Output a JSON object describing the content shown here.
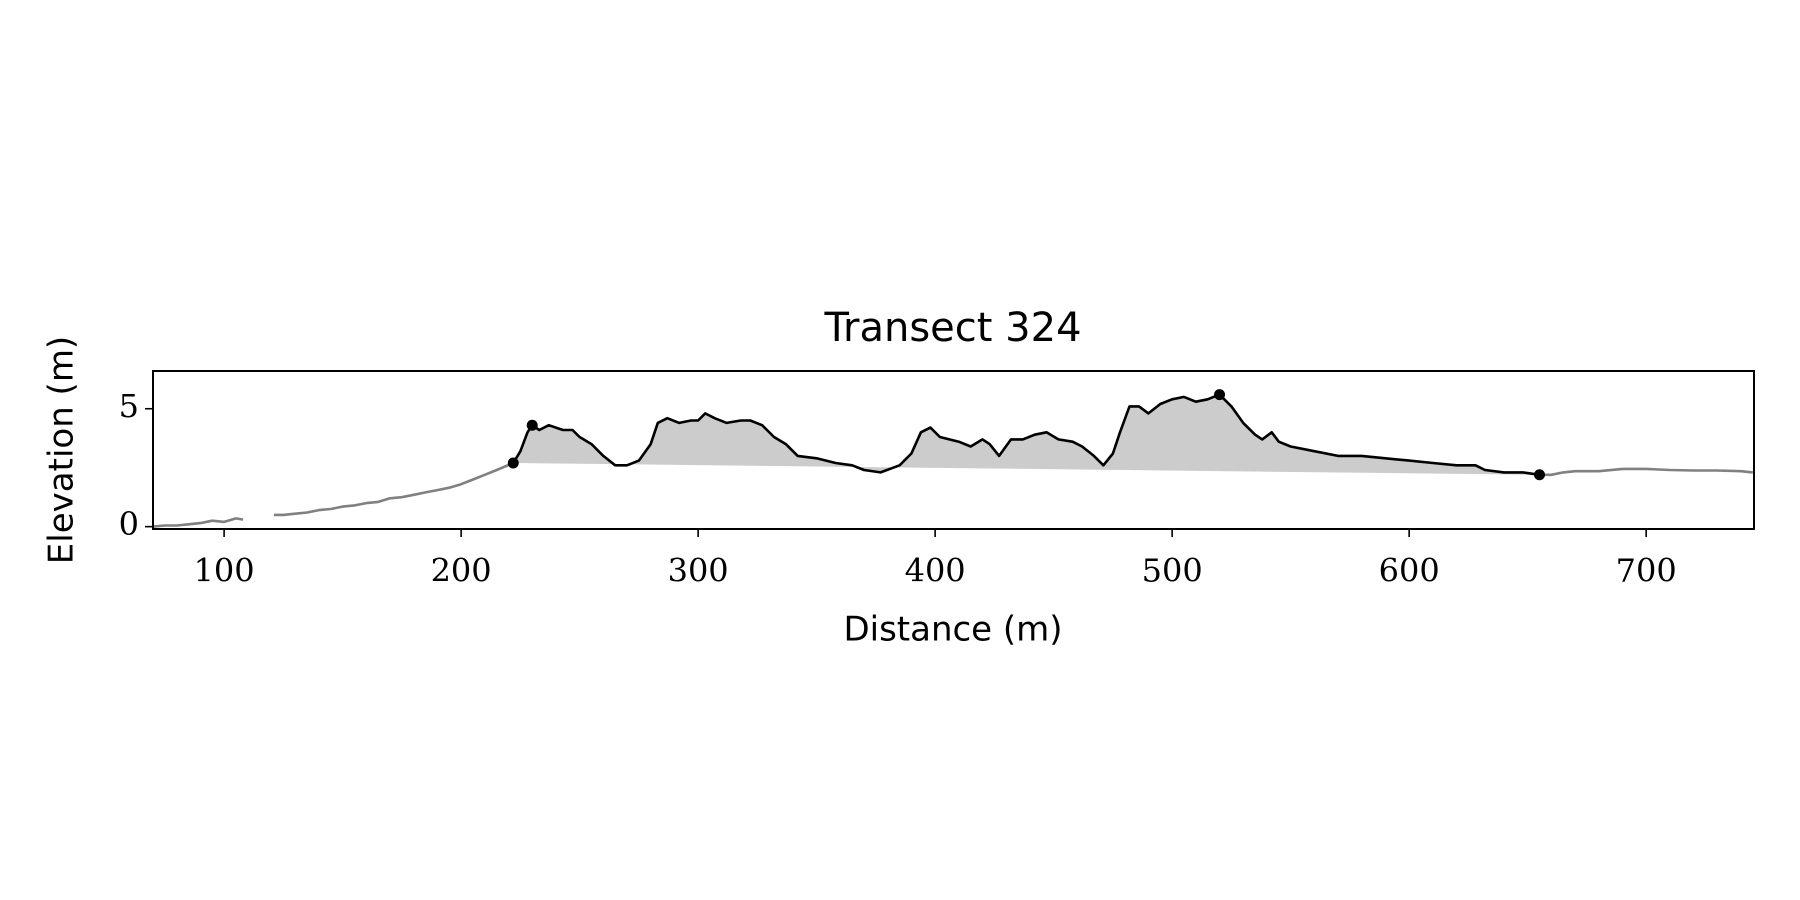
{
  "chart_data": {
    "type": "line",
    "title": "Transect 324",
    "x_label": "Distance (m)",
    "y_label": "Elevation (m)",
    "xlim": [
      70,
      745.5
    ],
    "ylim": [
      -0.1,
      6.6
    ],
    "xticks": [
      100,
      200,
      300,
      400,
      500,
      600,
      700
    ],
    "yticks": [
      0,
      5
    ],
    "grid": false,
    "series": [
      {
        "color": "#808080",
        "x": [
          70,
          75,
          80,
          85,
          90,
          95,
          100,
          105,
          108,
          114,
          121,
          125,
          130,
          135,
          140,
          145,
          150,
          155,
          160,
          165,
          170,
          175,
          180,
          185,
          190,
          195,
          200,
          205,
          210,
          215,
          222,
          440,
          655,
          660,
          665,
          670,
          680,
          690,
          700,
          710,
          720,
          730,
          740,
          745
        ],
        "values": [
          0.0,
          0.05,
          0.05,
          0.1,
          0.15,
          0.25,
          0.2,
          0.35,
          0.3,
          null,
          0.5,
          0.5,
          0.55,
          0.6,
          0.7,
          0.75,
          0.85,
          0.9,
          1.0,
          1.05,
          1.2,
          1.25,
          1.35,
          1.45,
          1.55,
          1.65,
          1.8,
          2.0,
          2.2,
          2.4,
          2.7,
          null,
          2.2,
          2.2,
          2.3,
          2.35,
          2.35,
          2.45,
          2.45,
          2.4,
          2.38,
          2.38,
          2.35,
          2.3
        ]
      },
      {
        "color": "#000000",
        "fill": "#cccccc",
        "x": [
          222,
          225,
          228,
          230,
          233,
          237,
          240,
          243,
          247,
          250,
          255,
          260,
          265,
          270,
          275,
          280,
          283,
          287,
          292,
          297,
          300,
          303,
          307,
          312,
          318,
          322,
          327,
          332,
          337,
          342,
          350,
          358,
          365,
          370,
          377,
          385,
          390,
          394,
          398,
          402,
          410,
          415,
          420,
          423,
          427,
          432,
          437,
          442,
          447,
          452,
          458,
          462,
          467,
          471,
          475,
          478,
          482,
          486,
          490,
          495,
          500,
          505,
          510,
          515,
          520,
          525,
          530,
          535,
          538,
          542,
          545,
          550,
          560,
          570,
          580,
          590,
          600,
          610,
          620,
          628,
          632,
          640,
          648,
          655
        ],
        "values": [
          2.7,
          3.2,
          4.0,
          4.3,
          4.1,
          4.3,
          4.2,
          4.1,
          4.1,
          3.8,
          3.5,
          3.0,
          2.6,
          2.6,
          2.8,
          3.5,
          4.4,
          4.6,
          4.4,
          4.5,
          4.5,
          4.8,
          4.6,
          4.4,
          4.5,
          4.5,
          4.3,
          3.8,
          3.5,
          3.0,
          2.9,
          2.7,
          2.6,
          2.4,
          2.3,
          2.6,
          3.1,
          4.0,
          4.2,
          3.8,
          3.6,
          3.4,
          3.7,
          3.5,
          3.0,
          3.7,
          3.7,
          3.9,
          4.0,
          3.7,
          3.6,
          3.4,
          3.0,
          2.6,
          3.1,
          4.0,
          5.1,
          5.1,
          4.8,
          5.2,
          5.4,
          5.5,
          5.3,
          5.4,
          5.6,
          5.1,
          4.4,
          3.9,
          3.7,
          4.0,
          3.6,
          3.4,
          3.2,
          3.0,
          3.0,
          2.9,
          2.8,
          2.7,
          2.6,
          2.6,
          2.4,
          2.3,
          2.3,
          2.2
        ]
      },
      {
        "color": "#000000",
        "marker": "o",
        "x": [
          222,
          230,
          520,
          655
        ],
        "values": [
          2.7,
          4.3,
          5.6,
          2.2
        ]
      }
    ]
  }
}
